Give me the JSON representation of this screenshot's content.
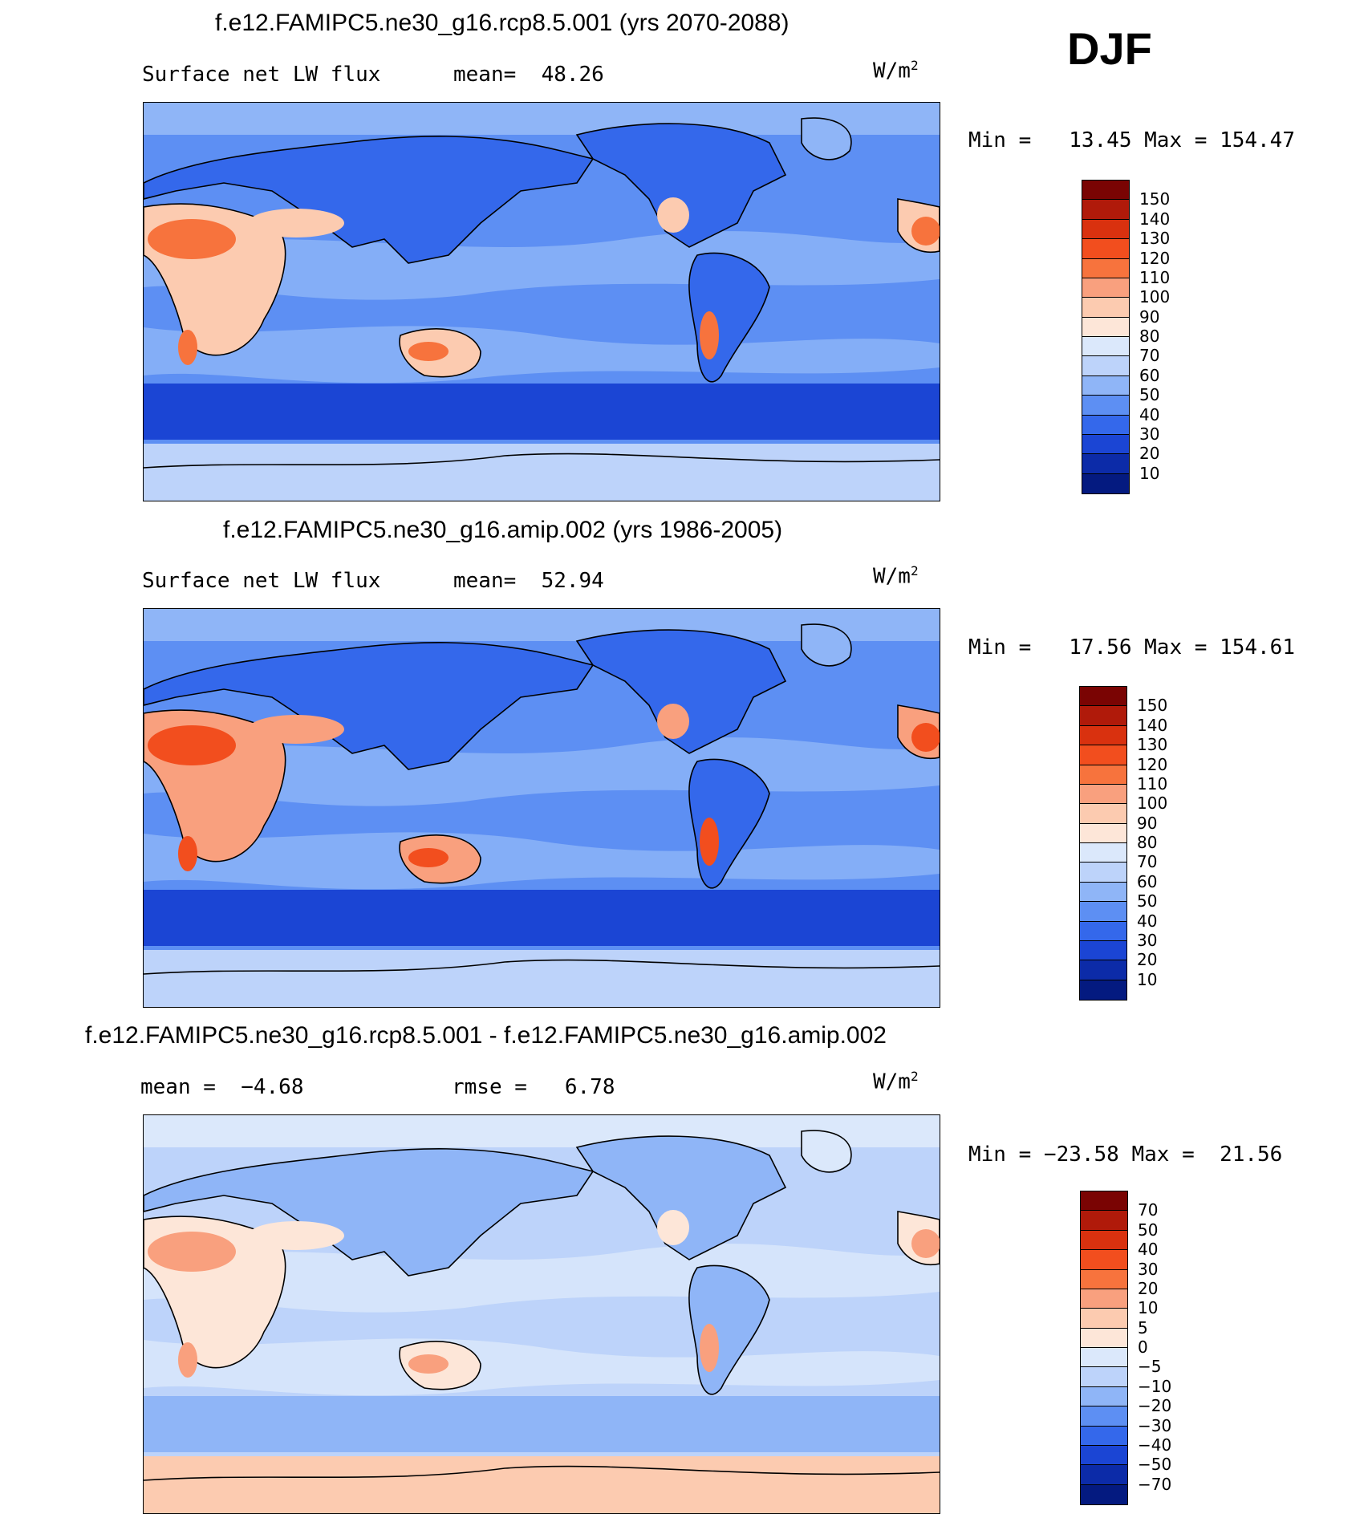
{
  "season": "DJF",
  "panels": [
    {
      "title": "f.e12.FAMIPC5.ne30_g16.rcp8.5.001 (yrs 2070-2088)",
      "left_label": "Surface net LW flux",
      "center_label": "mean=  48.26",
      "units_base": "W/m",
      "units_exp": "2",
      "minmax": "Min =   13.45 Max = 154.47",
      "colorbar": {
        "labels": [
          "150",
          "140",
          "130",
          "120",
          "110",
          "100",
          "90",
          "80",
          "70",
          "60",
          "50",
          "40",
          "30",
          "20",
          "10"
        ],
        "colors": [
          "#7a0403",
          "#b01a0a",
          "#d9310f",
          "#f24e1e",
          "#f7733d",
          "#f9a07e",
          "#fccbb0",
          "#fde6d8",
          "#dbe8fb",
          "#bdd3fa",
          "#8fb5f7",
          "#5d8ff3",
          "#3468eb",
          "#1b45d4",
          "#0c2ba8",
          "#041a80"
        ]
      },
      "map_colors": {
        "ocean": "#5d8ff3",
        "polar": "#bdd3fa",
        "band_south": "#1b45d4",
        "hot": "#f7733d",
        "warm": "#fccbb0",
        "cool": "#8fb5f7",
        "land_high": "#3468eb"
      }
    },
    {
      "title": "f.e12.FAMIPC5.ne30_g16.amip.002 (yrs 1986-2005)",
      "left_label": "Surface net LW flux",
      "center_label": "mean=  52.94",
      "units_base": "W/m",
      "units_exp": "2",
      "minmax": "Min =   17.56 Max = 154.61",
      "colorbar": {
        "labels": [
          "150",
          "140",
          "130",
          "120",
          "110",
          "100",
          "90",
          "80",
          "70",
          "60",
          "50",
          "40",
          "30",
          "20",
          "10"
        ],
        "colors": [
          "#7a0403",
          "#b01a0a",
          "#d9310f",
          "#f24e1e",
          "#f7733d",
          "#f9a07e",
          "#fccbb0",
          "#fde6d8",
          "#dbe8fb",
          "#bdd3fa",
          "#8fb5f7",
          "#5d8ff3",
          "#3468eb",
          "#1b45d4",
          "#0c2ba8",
          "#041a80"
        ]
      },
      "map_colors": {
        "ocean": "#5d8ff3",
        "polar": "#bdd3fa",
        "band_south": "#1b45d4",
        "hot": "#f24e1e",
        "warm": "#f9a07e",
        "cool": "#8fb5f7",
        "land_high": "#3468eb"
      }
    },
    {
      "title": "f.e12.FAMIPC5.ne30_g16.rcp8.5.001 - f.e12.FAMIPC5.ne30_g16.amip.002",
      "left_label": "mean =  −4.68",
      "center_label": "rmse =   6.78",
      "units_base": "W/m",
      "units_exp": "2",
      "minmax": "Min = −23.58 Max =  21.56",
      "colorbar": {
        "labels": [
          "70",
          "50",
          "40",
          "30",
          "20",
          "10",
          "5",
          "0",
          "−5",
          "−10",
          "−20",
          "−30",
          "−40",
          "−50",
          "−70"
        ],
        "colors": [
          "#7a0403",
          "#b01a0a",
          "#d9310f",
          "#f24e1e",
          "#f7733d",
          "#f9a07e",
          "#fccbb0",
          "#fde6d8",
          "#dbe8fb",
          "#bdd3fa",
          "#8fb5f7",
          "#5d8ff3",
          "#3468eb",
          "#1b45d4",
          "#0c2ba8",
          "#041a80"
        ]
      },
      "map_colors": {
        "ocean": "#bdd3fa",
        "polar": "#fccbb0",
        "band_south": "#8fb5f7",
        "hot": "#f9a07e",
        "warm": "#fde6d8",
        "cool": "#dbe8fb",
        "land_high": "#8fb5f7"
      }
    }
  ]
}
